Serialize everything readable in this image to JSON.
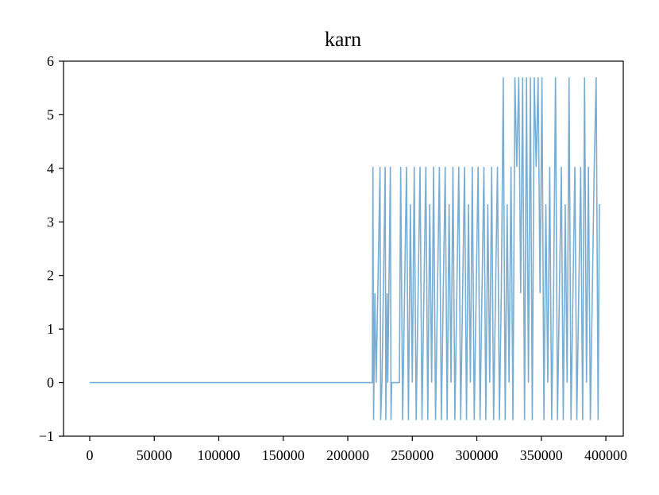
{
  "chart_data": {
    "type": "line",
    "title": "karn",
    "x": [
      0,
      219000,
      219500,
      220000,
      221000,
      222000,
      225000,
      225500,
      226500,
      229000,
      229500,
      230500,
      231000,
      233000,
      233500,
      234000,
      240000,
      241000,
      242500,
      244000,
      245500,
      247000,
      248500,
      250000,
      251500,
      253000,
      254500,
      256000,
      257500,
      259000,
      260500,
      262000,
      263500,
      265000,
      266500,
      268000,
      269500,
      271000,
      272500,
      274000,
      275500,
      277000,
      278500,
      280000,
      281500,
      283000,
      284500,
      286000,
      287500,
      289000,
      290500,
      292000,
      293500,
      295000,
      296500,
      298000,
      299500,
      301000,
      302500,
      304000,
      305500,
      307000,
      308500,
      310000,
      311500,
      313000,
      314500,
      316000,
      317500,
      319000,
      320500,
      322000,
      323500,
      325000,
      326500,
      328000,
      329500,
      331000,
      332500,
      334000,
      335500,
      337000,
      338500,
      340000,
      341500,
      343000,
      344500,
      346000,
      347500,
      349000,
      350500,
      352000,
      353500,
      355000,
      356500,
      358000,
      359500,
      361000,
      362500,
      364000,
      365500,
      367000,
      368500,
      370000,
      371500,
      373000,
      374500,
      376000,
      377500,
      379000,
      380500,
      382000,
      383500,
      385000,
      386500,
      388000,
      389500,
      391000,
      392500,
      394000,
      395000
    ],
    "series": [
      {
        "name": "karn",
        "color": "#1f77b4",
        "values": [
          0,
          0,
          4.03,
          -0.7,
          1.67,
          0,
          4.03,
          -0.7,
          0,
          4.03,
          -0.7,
          1.67,
          0,
          4.03,
          -0.7,
          0,
          0,
          4.03,
          -0.7,
          1.67,
          4.03,
          -0.7,
          3.33,
          0,
          4.03,
          -0.7,
          1.67,
          4.03,
          -0.7,
          1.67,
          4.03,
          -0.7,
          3.33,
          0,
          4.03,
          -0.7,
          1.67,
          4.03,
          -0.7,
          1.67,
          4.03,
          -0.7,
          3.33,
          0,
          4.03,
          -0.7,
          1.67,
          4.03,
          -0.7,
          1.67,
          4.03,
          -0.7,
          3.33,
          0,
          4.03,
          -0.7,
          1.67,
          4.03,
          -0.7,
          1.67,
          4.03,
          -0.7,
          3.33,
          0,
          4.03,
          -0.7,
          1.67,
          4.03,
          -0.7,
          1.67,
          5.7,
          -0.7,
          3.33,
          0,
          4.03,
          -0.7,
          5.7,
          4.03,
          5.7,
          1.67,
          5.7,
          -0.7,
          5.7,
          0,
          5.7,
          -0.7,
          5.7,
          4.03,
          5.7,
          1.67,
          5.7,
          -0.7,
          3.33,
          0,
          4.03,
          -0.7,
          1.67,
          5.7,
          -0.7,
          1.67,
          4.03,
          -0.7,
          3.33,
          0,
          5.7,
          -0.7,
          1.67,
          4.03,
          -0.7,
          1.67,
          4.03,
          -0.7,
          5.7,
          0,
          4.03,
          -0.7,
          1.67,
          4.03,
          5.7,
          -0.7,
          3.33
        ]
      }
    ],
    "xlim": [
      -20300,
      413500
    ],
    "xticks": [
      0,
      50000,
      100000,
      150000,
      200000,
      250000,
      300000,
      350000,
      400000
    ],
    "ylim": [
      -1,
      6
    ],
    "yticks": [
      {
        "value": -1,
        "label": "−1"
      },
      0,
      1,
      2,
      3,
      4,
      5,
      6
    ]
  }
}
